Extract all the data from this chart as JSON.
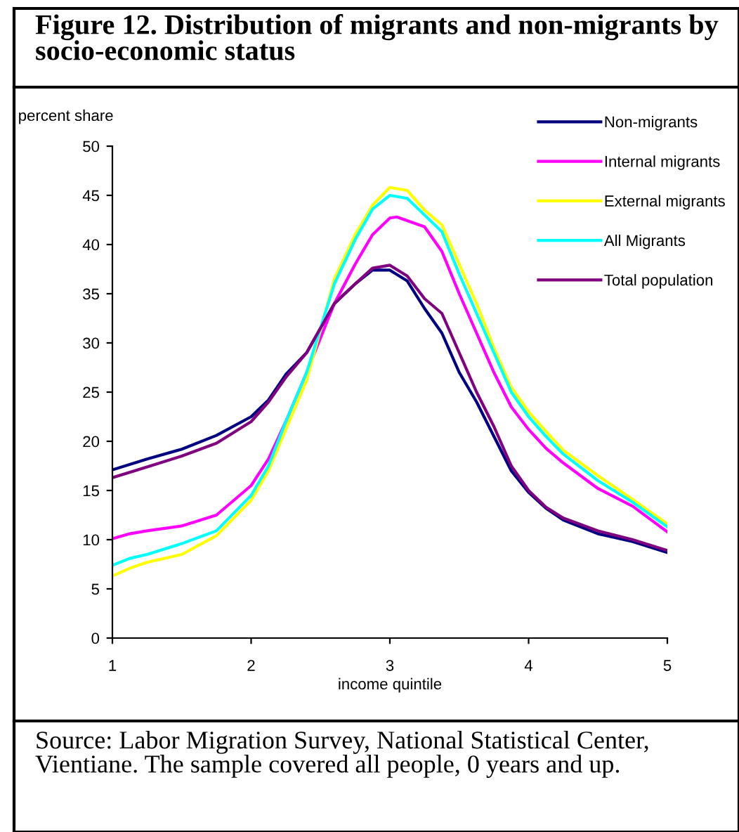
{
  "chart_data": {
    "type": "line",
    "title": "Figure 12. Distribution of migrants and non-migrants by socio-economic status",
    "xlabel": "income quintile",
    "ylabel": "percent share",
    "annotations": [
      "Source: Labor Migration Survey, National Statistical Center, Vientiane. The sample covered all people, 0 years and up."
    ],
    "xlim": [
      1,
      5
    ],
    "xticks": [
      1,
      2,
      3,
      4,
      5
    ],
    "ylim": [
      0,
      50
    ],
    "yticks": [
      0,
      5,
      10,
      15,
      20,
      25,
      30,
      35,
      40,
      45,
      50
    ],
    "grid": false,
    "legend": "top right",
    "marker": "none",
    "line_style": "solid",
    "series": [
      {
        "name": "Non-migrants",
        "color": "#000080",
        "x": [
          1,
          1.25,
          1.5,
          1.75,
          2,
          2.125,
          2.25,
          2.4,
          2.6,
          2.75,
          2.875,
          3,
          3.125,
          3.25,
          3.375,
          3.5,
          3.625,
          3.75,
          3.875,
          4,
          4.125,
          4.25,
          4.5,
          4.75,
          5
        ],
        "values": [
          17.1,
          18.2,
          19.2,
          20.6,
          22.5,
          24.2,
          26.8,
          29,
          34,
          36,
          37.4,
          37.4,
          36.3,
          33.5,
          31,
          27,
          24,
          20.5,
          17,
          14.8,
          13.2,
          12,
          10.6,
          9.8,
          8.7
        ]
      },
      {
        "name": "Internal migrants",
        "color": "#ff00ff",
        "x": [
          1,
          1.125,
          1.25,
          1.5,
          1.75,
          2,
          2.125,
          2.25,
          2.4,
          2.6,
          2.75,
          2.875,
          3,
          3.05,
          3.25,
          3.375,
          3.5,
          3.625,
          3.75,
          3.875,
          4,
          4.125,
          4.25,
          4.5,
          4.75,
          5
        ],
        "values": [
          10.1,
          10.6,
          10.9,
          11.4,
          12.5,
          15.5,
          18.2,
          22,
          27,
          34,
          38,
          41,
          42.7,
          42.8,
          41.8,
          39.3,
          35,
          31,
          27,
          23.5,
          21.2,
          19.3,
          17.8,
          15.2,
          13.4,
          10.8
        ]
      },
      {
        "name": "External migrants",
        "color": "#ffff00",
        "x": [
          1,
          1.125,
          1.25,
          1.5,
          1.75,
          2,
          2.125,
          2.25,
          2.4,
          2.6,
          2.75,
          2.875,
          3,
          3.125,
          3.25,
          3.375,
          3.5,
          3.625,
          3.75,
          3.875,
          4,
          4.125,
          4.25,
          4.5,
          4.75,
          5
        ],
        "values": [
          6.3,
          7.1,
          7.7,
          8.5,
          10.4,
          14,
          17,
          21.2,
          26.2,
          36.5,
          41,
          44,
          45.8,
          45.5,
          43.5,
          42,
          38,
          34,
          29.5,
          25.5,
          23,
          21,
          19.1,
          16.5,
          14.1,
          11.6
        ]
      },
      {
        "name": "All Migrants",
        "color": "#00ffff",
        "x": [
          1,
          1.125,
          1.25,
          1.5,
          1.75,
          2,
          2.125,
          2.25,
          2.4,
          2.6,
          2.75,
          2.875,
          3,
          3.125,
          3.25,
          3.375,
          3.5,
          3.625,
          3.75,
          3.875,
          4,
          4.125,
          4.25,
          4.5,
          4.75,
          5
        ],
        "values": [
          7.4,
          8.1,
          8.5,
          9.6,
          10.9,
          14.5,
          17.5,
          22,
          27,
          36,
          40.5,
          43.6,
          45,
          44.7,
          43,
          41.3,
          37,
          33,
          29,
          25,
          22.5,
          20.5,
          18.7,
          16,
          13.8,
          11.3
        ]
      },
      {
        "name": "Total population",
        "color": "#800080",
        "x": [
          1,
          1.25,
          1.5,
          1.75,
          2,
          2.125,
          2.25,
          2.4,
          2.6,
          2.75,
          2.875,
          3,
          3.125,
          3.25,
          3.375,
          3.5,
          3.625,
          3.75,
          3.875,
          4,
          4.125,
          4.25,
          4.5,
          4.75,
          5
        ],
        "values": [
          16.3,
          17.4,
          18.5,
          19.8,
          22,
          24,
          26.5,
          29,
          34,
          36,
          37.6,
          37.9,
          36.8,
          34.5,
          33,
          29,
          25,
          21.5,
          17.5,
          15,
          13.3,
          12.2,
          10.9,
          10,
          8.9
        ]
      }
    ]
  }
}
